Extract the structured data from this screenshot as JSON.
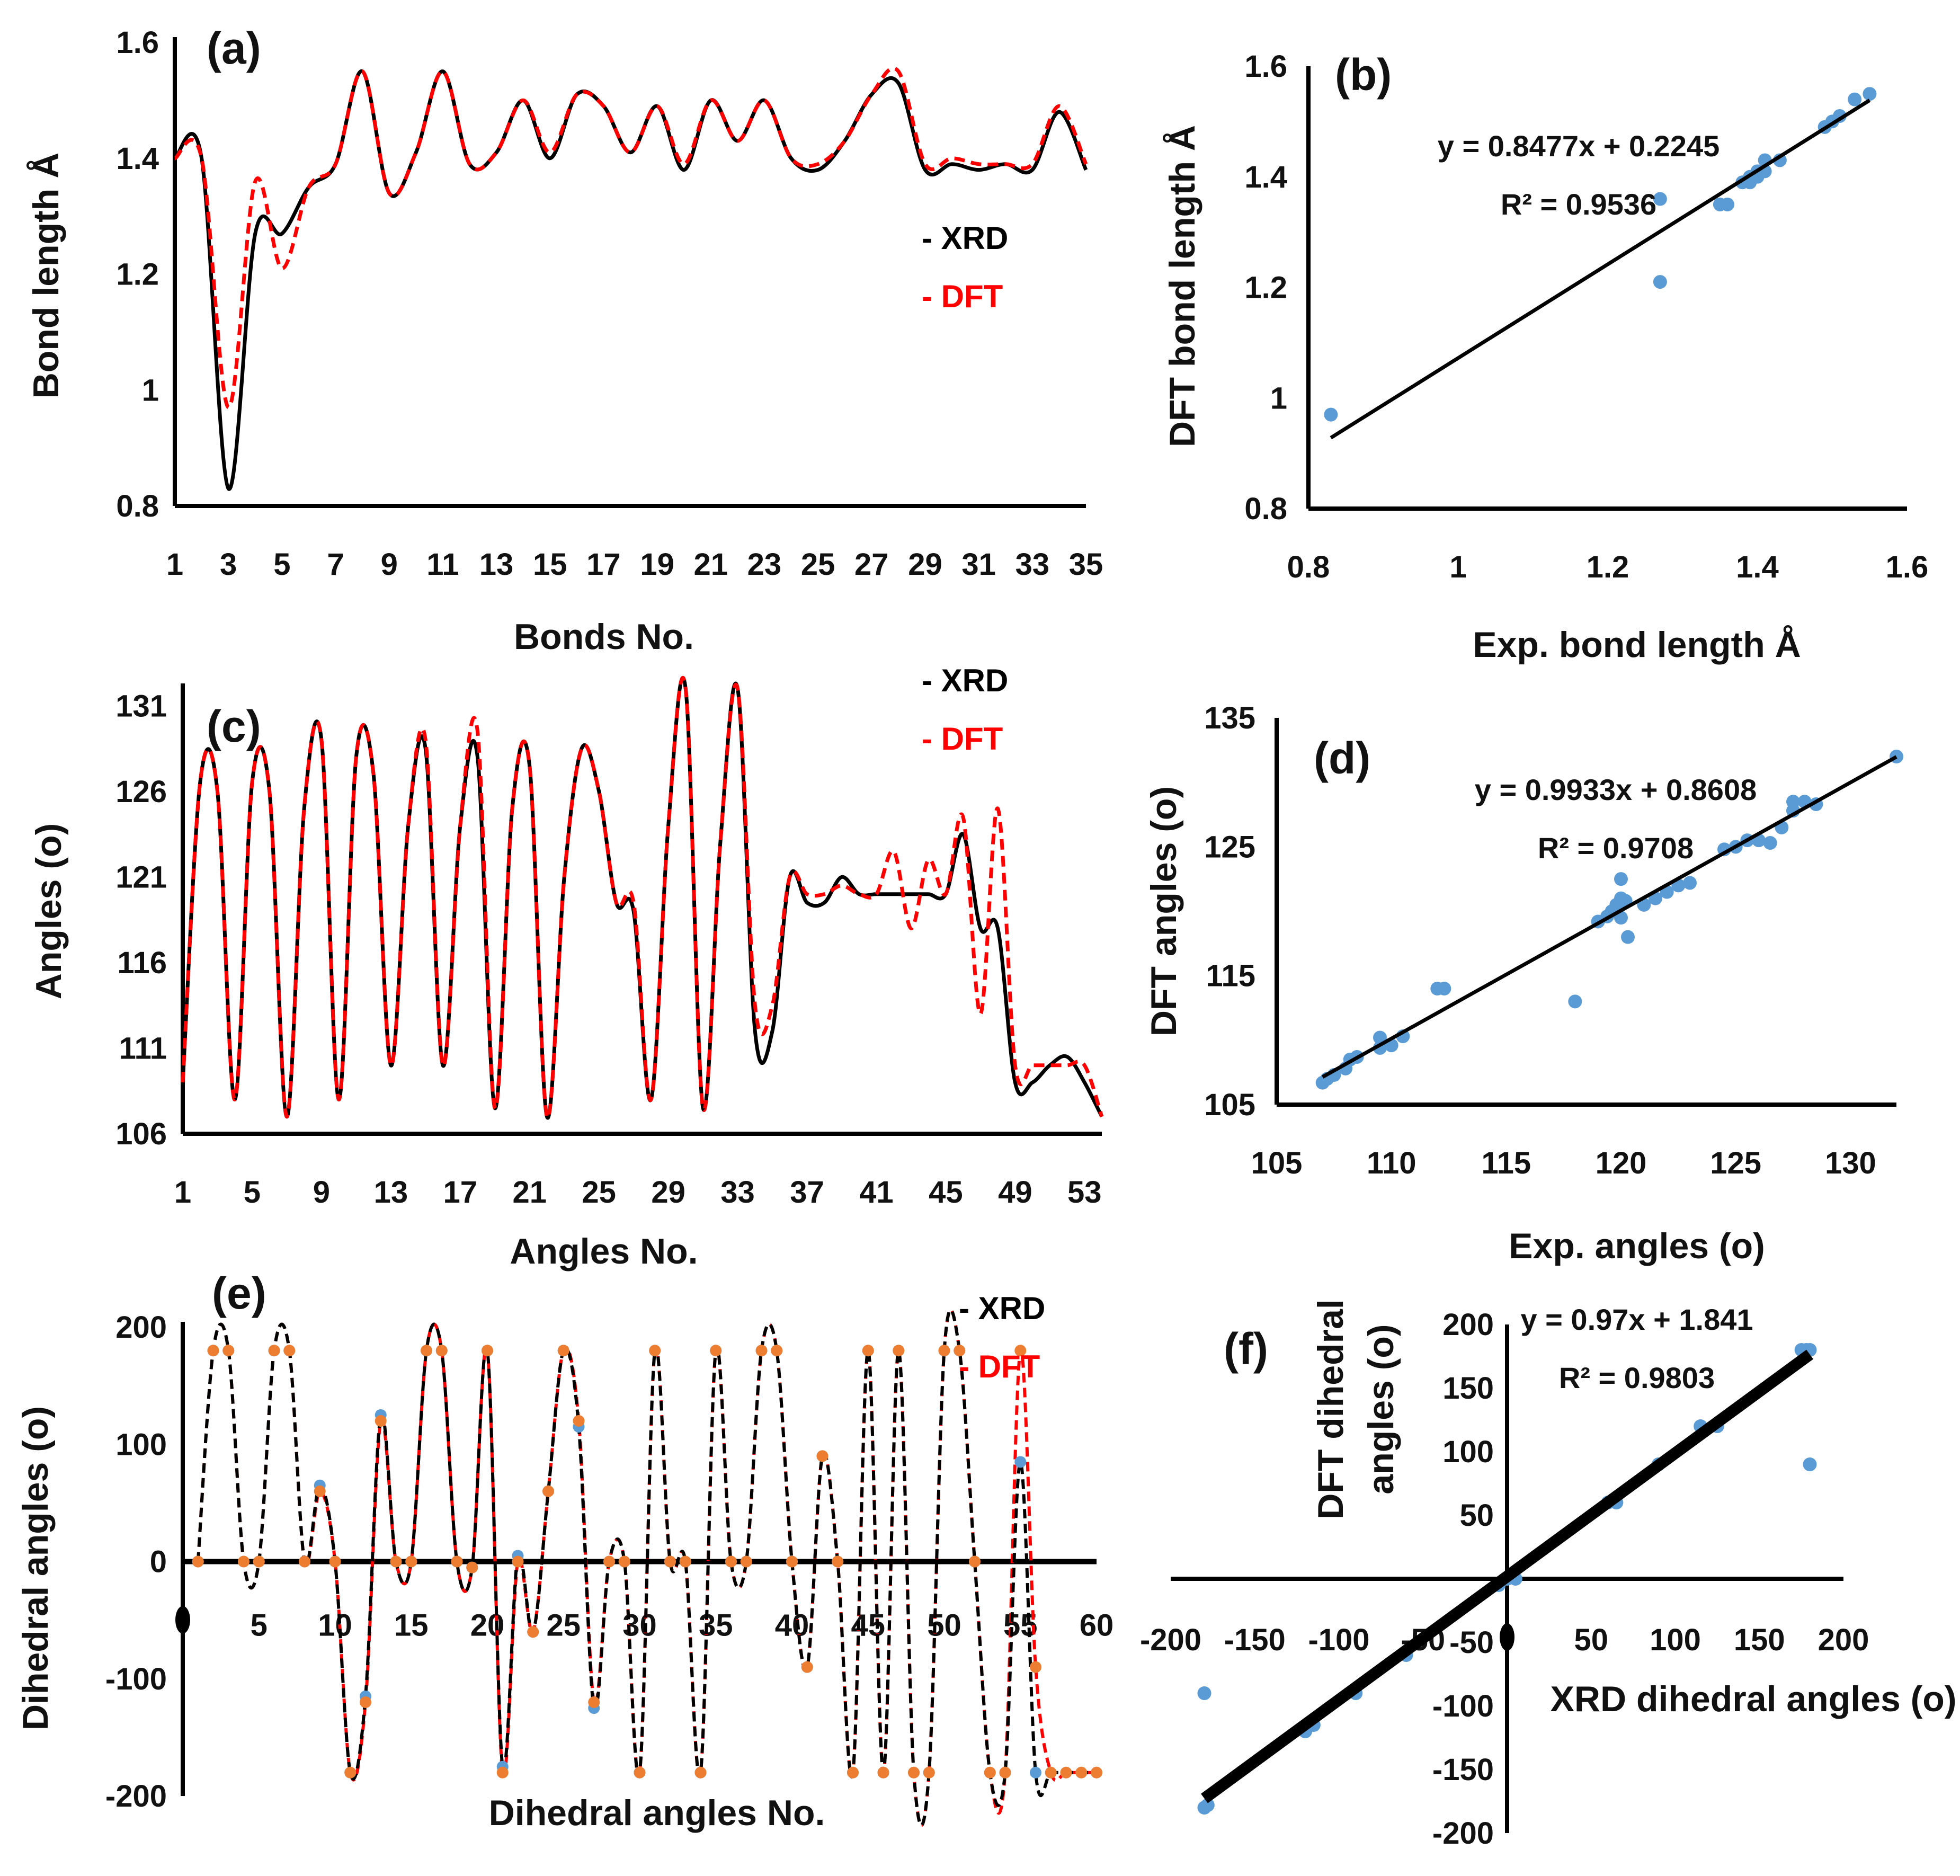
{
  "colors": {
    "xrd": "#000000",
    "dft": "#ff0000",
    "scatter": "#5b9bd5",
    "dft_marker": "#ed7d31"
  },
  "chart_data": [
    {
      "id": "a",
      "panel_label": "(a)",
      "type": "line",
      "xlabel": "Bonds No.",
      "ylabel": "Bond length Å",
      "xlim": [
        1,
        35
      ],
      "ylim": [
        0.8,
        1.6
      ],
      "xticks": [
        "1",
        "3",
        "5",
        "7",
        "9",
        "11",
        "13",
        "15",
        "17",
        "19",
        "21",
        "23",
        "25",
        "27",
        "29",
        "31",
        "33",
        "35"
      ],
      "yticks": [
        "0.8",
        "1",
        "1.2",
        "1.4",
        "1.6"
      ],
      "legend": [
        "- XRD",
        "- DFT"
      ],
      "x": [
        1,
        2,
        3,
        4,
        5,
        6,
        7,
        8,
        9,
        10,
        11,
        12,
        13,
        14,
        15,
        16,
        17,
        18,
        19,
        20,
        21,
        22,
        23,
        24,
        25,
        26,
        27,
        28,
        29,
        30,
        31,
        32,
        33,
        34,
        35
      ],
      "series": [
        {
          "name": "XRD",
          "values": [
            1.4,
            1.4,
            0.83,
            1.27,
            1.27,
            1.35,
            1.39,
            1.55,
            1.34,
            1.41,
            1.55,
            1.39,
            1.41,
            1.5,
            1.4,
            1.51,
            1.49,
            1.41,
            1.49,
            1.38,
            1.5,
            1.43,
            1.5,
            1.4,
            1.38,
            1.43,
            1.51,
            1.53,
            1.38,
            1.39,
            1.38,
            1.39,
            1.38,
            1.48,
            1.38
          ]
        },
        {
          "name": "DFT",
          "values": [
            1.4,
            1.4,
            0.97,
            1.36,
            1.21,
            1.35,
            1.39,
            1.55,
            1.34,
            1.41,
            1.55,
            1.39,
            1.41,
            1.5,
            1.41,
            1.51,
            1.49,
            1.41,
            1.49,
            1.39,
            1.5,
            1.43,
            1.5,
            1.4,
            1.39,
            1.43,
            1.51,
            1.55,
            1.39,
            1.4,
            1.39,
            1.39,
            1.39,
            1.49,
            1.39
          ]
        }
      ]
    },
    {
      "id": "b",
      "panel_label": "(b)",
      "type": "scatter",
      "xlabel": "Exp. bond length Å",
      "ylabel": "DFT bond length Å",
      "xlim": [
        0.8,
        1.6
      ],
      "ylim": [
        0.8,
        1.6
      ],
      "xticks": [
        "0.8",
        "1",
        "1.2",
        "1.4",
        "1.6"
      ],
      "yticks": [
        "0.8",
        "1",
        "1.2",
        "1.4",
        "1.6"
      ],
      "equation": "y = 0.8477x + 0.2245",
      "r2": "R² = 0.9536",
      "fit": {
        "slope": 0.8477,
        "intercept": 0.2245,
        "x_range": [
          0.83,
          1.55
        ]
      },
      "points": [
        [
          0.83,
          0.97
        ],
        [
          1.27,
          1.36
        ],
        [
          1.27,
          1.21
        ],
        [
          1.35,
          1.35
        ],
        [
          1.36,
          1.35
        ],
        [
          1.38,
          1.39
        ],
        [
          1.39,
          1.39
        ],
        [
          1.39,
          1.4
        ],
        [
          1.4,
          1.4
        ],
        [
          1.4,
          1.41
        ],
        [
          1.41,
          1.41
        ],
        [
          1.41,
          1.43
        ],
        [
          1.43,
          1.43
        ],
        [
          1.49,
          1.49
        ],
        [
          1.5,
          1.5
        ],
        [
          1.51,
          1.51
        ],
        [
          1.53,
          1.54
        ],
        [
          1.55,
          1.55
        ]
      ]
    },
    {
      "id": "c",
      "panel_label": "(c)",
      "type": "line",
      "xlabel": "Angles No.",
      "ylabel": "Angles (o)",
      "xlim": [
        1,
        54
      ],
      "ylim": [
        106,
        132
      ],
      "xticks": [
        "1",
        "5",
        "9",
        "13",
        "17",
        "21",
        "25",
        "29",
        "33",
        "37",
        "41",
        "45",
        "49",
        "53"
      ],
      "yticks": [
        "106",
        "111",
        "116",
        "121",
        "126",
        "131"
      ],
      "legend": [
        "- XRD",
        "- DFT"
      ],
      "x": [
        1,
        2,
        3,
        4,
        5,
        6,
        7,
        8,
        9,
        10,
        11,
        12,
        13,
        14,
        15,
        16,
        17,
        18,
        19,
        20,
        21,
        22,
        23,
        24,
        25,
        26,
        27,
        28,
        29,
        30,
        31,
        32,
        33,
        34,
        35,
        36,
        37,
        38,
        39,
        40,
        41,
        42,
        43,
        44,
        45,
        46,
        47,
        48,
        49,
        50,
        51,
        52,
        53,
        54
      ],
      "series": [
        {
          "name": "XRD",
          "values": [
            109,
            126.5,
            126,
            108,
            126.5,
            126,
            107,
            125,
            129,
            108,
            128,
            127,
            110,
            124,
            128.5,
            110,
            124,
            128,
            107.5,
            125,
            127.5,
            107,
            121,
            128.5,
            126,
            119.5,
            119,
            108,
            124,
            132,
            107.5,
            123,
            132,
            112,
            112,
            121,
            119.5,
            119.5,
            121,
            120,
            120,
            120,
            120,
            120,
            120,
            123.5,
            118,
            118,
            109,
            109,
            110,
            110.5,
            109,
            107
          ]
        },
        {
          "name": "DFT",
          "values": [
            109,
            126.5,
            126,
            108,
            126.5,
            126,
            107,
            125,
            129,
            108,
            128,
            127,
            110,
            124,
            129,
            110,
            124,
            129.5,
            107.5,
            125,
            127.5,
            107,
            121,
            128.5,
            126,
            119.5,
            119.5,
            108,
            124,
            132,
            107.5,
            123,
            132,
            113.5,
            113.5,
            121,
            120,
            120,
            120.5,
            120,
            120,
            122.5,
            118,
            122,
            120,
            124.5,
            113,
            125,
            110,
            110,
            110,
            110,
            110,
            107
          ]
        }
      ]
    },
    {
      "id": "d",
      "panel_label": "(d)",
      "type": "scatter",
      "xlabel": "Exp. angles (o)",
      "ylabel": "DFT angles (o)",
      "xlim": [
        105,
        132
      ],
      "ylim": [
        105,
        135
      ],
      "xticks": [
        "105",
        "110",
        "115",
        "120",
        "125",
        "130"
      ],
      "yticks": [
        "105",
        "115",
        "125",
        "135"
      ],
      "equation": "y = 0.9933x + 0.8608",
      "r2": "R² = 0.9708",
      "fit": {
        "slope": 0.9933,
        "intercept": 0.8608,
        "x_range": [
          107,
          132
        ]
      },
      "points": [
        [
          107.0,
          106.7
        ],
        [
          107.2,
          107.0
        ],
        [
          107.5,
          107.3
        ],
        [
          108.0,
          107.8
        ],
        [
          108.2,
          108.5
        ],
        [
          108.5,
          108.7
        ],
        [
          109.5,
          109.4
        ],
        [
          109.5,
          110.2
        ],
        [
          110.0,
          109.6
        ],
        [
          110.5,
          110.3
        ],
        [
          112.0,
          114.0
        ],
        [
          112.3,
          114.0
        ],
        [
          118.0,
          113.0
        ],
        [
          119.0,
          119.2
        ],
        [
          119.4,
          119.6
        ],
        [
          119.6,
          120.0
        ],
        [
          119.8,
          120.5
        ],
        [
          120.0,
          119.5
        ],
        [
          120.0,
          121.0
        ],
        [
          120.0,
          122.5
        ],
        [
          120.2,
          120.8
        ],
        [
          120.3,
          118.0
        ],
        [
          121.0,
          120.5
        ],
        [
          121.5,
          121.0
        ],
        [
          122.0,
          121.5
        ],
        [
          122.5,
          122.0
        ],
        [
          123.0,
          122.2
        ],
        [
          124.5,
          124.8
        ],
        [
          125.0,
          125.0
        ],
        [
          125.5,
          125.5
        ],
        [
          126.0,
          125.5
        ],
        [
          126.5,
          125.3
        ],
        [
          127.0,
          126.5
        ],
        [
          127.5,
          127.8
        ],
        [
          127.5,
          128.5
        ],
        [
          128.0,
          128.5
        ],
        [
          128.5,
          128.3
        ],
        [
          132.0,
          132.0
        ]
      ]
    },
    {
      "id": "e",
      "panel_label": "(e)",
      "type": "line",
      "xlabel": "Dihedral angles No.",
      "ylabel": "Dihedral angles (o)",
      "xlim": [
        0,
        60
      ],
      "ylim": [
        -200,
        200
      ],
      "xticks": [
        "5",
        "10",
        "15",
        "20",
        "25",
        "30",
        "35",
        "40",
        "45",
        "50",
        "55",
        "60"
      ],
      "yticks": [
        "-200",
        "-100",
        "0",
        "100",
        "200"
      ],
      "legend": [
        "- XRD",
        "- DFT"
      ],
      "x": [
        1,
        2,
        3,
        4,
        5,
        6,
        7,
        8,
        9,
        10,
        11,
        12,
        13,
        14,
        15,
        16,
        17,
        18,
        19,
        20,
        21,
        22,
        23,
        24,
        25,
        26,
        27,
        28,
        29,
        30,
        31,
        32,
        33,
        34,
        35,
        36,
        37,
        38,
        39,
        40,
        41,
        42,
        43,
        44,
        45,
        46,
        47,
        48,
        49,
        50,
        51,
        52,
        53,
        54,
        55,
        56,
        57,
        58,
        59,
        60
      ],
      "series": [
        {
          "name": "XRD",
          "values": [
            0,
            180,
            180,
            0,
            0,
            180,
            180,
            0,
            65,
            0,
            -180,
            -115,
            125,
            0,
            0,
            180,
            180,
            0,
            -5,
            180,
            -175,
            5,
            -60,
            60,
            180,
            115,
            -125,
            0,
            0,
            -180,
            180,
            0,
            0,
            -180,
            180,
            0,
            0,
            180,
            180,
            0,
            -90,
            90,
            0,
            -180,
            180,
            -180,
            180,
            -180,
            -180,
            180,
            180,
            0,
            -180,
            -180,
            85,
            -180,
            -180,
            -180,
            -180,
            -180
          ]
        },
        {
          "name": "DFT",
          "values": [
            0,
            180,
            180,
            0,
            0,
            180,
            180,
            0,
            60,
            0,
            -180,
            -120,
            120,
            0,
            0,
            180,
            180,
            0,
            -5,
            180,
            -180,
            0,
            -60,
            60,
            180,
            120,
            -120,
            0,
            0,
            -180,
            180,
            0,
            0,
            -180,
            180,
            0,
            0,
            180,
            180,
            0,
            -90,
            90,
            0,
            -180,
            180,
            -180,
            180,
            -180,
            -180,
            180,
            180,
            0,
            -180,
            -180,
            180,
            -90,
            -180,
            -180,
            -180,
            -180
          ]
        }
      ]
    },
    {
      "id": "f",
      "panel_label": "(f)",
      "type": "scatter",
      "xlabel": "XRD dihedral angles (o)",
      "ylabel": "DFT dihedral angles (o)",
      "xlim": [
        -200,
        200
      ],
      "ylim": [
        -200,
        200
      ],
      "xticks": [
        "-200",
        "-150",
        "-100",
        "-50",
        "50",
        "100",
        "150",
        "200"
      ],
      "yticks": [
        "-200",
        "-150",
        "-100",
        "-50",
        "50",
        "100",
        "150",
        "200"
      ],
      "equation": "y = 0.97x + 1.841",
      "r2": "R² = 0.9803",
      "fit": {
        "slope": 0.97,
        "intercept": 1.841,
        "x_range": [
          -180,
          180
        ]
      },
      "points": [
        [
          -180,
          -180
        ],
        [
          -178,
          -178
        ],
        [
          -180,
          -90
        ],
        [
          -120,
          -120
        ],
        [
          -115,
          -115
        ],
        [
          -90,
          -90
        ],
        [
          -60,
          -60
        ],
        [
          -5,
          -5
        ],
        [
          0,
          0
        ],
        [
          5,
          0
        ],
        [
          60,
          60
        ],
        [
          65,
          60
        ],
        [
          90,
          90
        ],
        [
          115,
          120
        ],
        [
          125,
          120
        ],
        [
          175,
          180
        ],
        [
          178,
          180
        ],
        [
          180,
          180
        ],
        [
          180,
          90
        ]
      ]
    }
  ]
}
